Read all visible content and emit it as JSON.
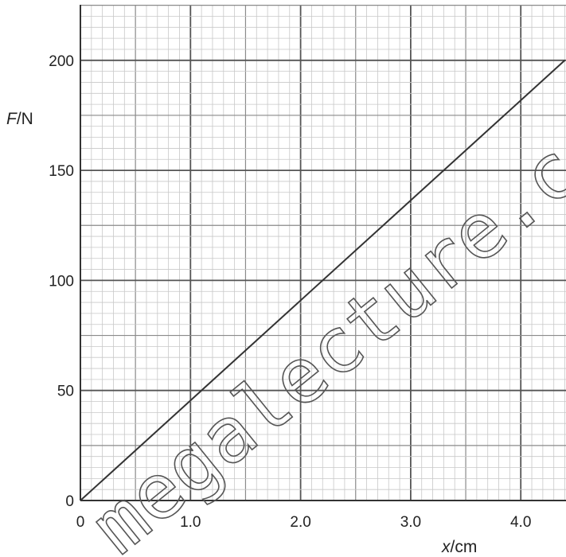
{
  "chart_data": {
    "type": "line",
    "x_axis": {
      "label_var": "x",
      "label_unit": "/cm",
      "ticks": [
        0,
        1.0,
        2.0,
        3.0,
        4.0
      ],
      "tick_labels": [
        "0",
        "1.0",
        "2.0",
        "3.0",
        "4.0"
      ],
      "range": [
        0,
        4.4
      ]
    },
    "y_axis": {
      "label_var": "F",
      "label_unit": "/N",
      "ticks": [
        0,
        50,
        100,
        150,
        200
      ],
      "tick_labels": [
        "0",
        "50",
        "100",
        "150",
        "200"
      ],
      "range": [
        0,
        225
      ]
    },
    "grid": true,
    "grid_colors": {
      "minor": "#c8c8c8",
      "mid": "#8a8a8a",
      "major": "#555555"
    },
    "series": [
      {
        "points": [
          [
            0,
            0
          ],
          [
            4.4,
            200
          ]
        ],
        "color": "#333333"
      }
    ]
  },
  "watermark": {
    "text": "megalecture.com",
    "color": "#555555"
  }
}
